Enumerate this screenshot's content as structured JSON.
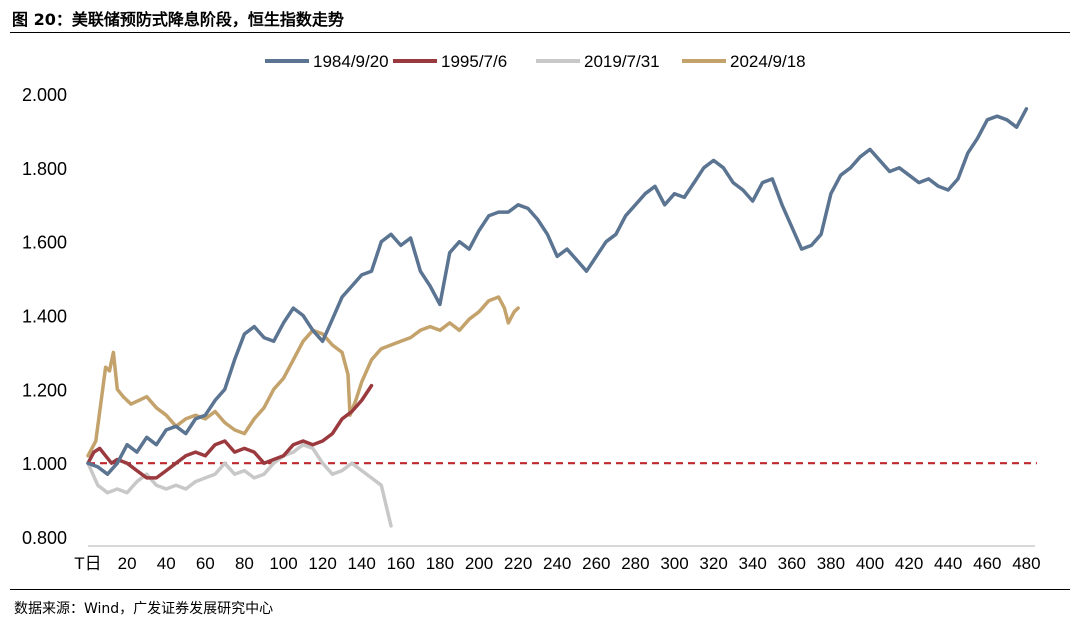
{
  "figure": {
    "title": "图 20：美联储预防式降息阶段，恒生指数走势",
    "source": "数据来源：Wind，广发证券发展研究中心"
  },
  "chart_data": {
    "type": "line",
    "title": "",
    "xlabel": "",
    "ylabel": "",
    "xlim": [
      0,
      485
    ],
    "ylim": [
      0.8,
      2.0
    ],
    "x_tick_labels": [
      "T日",
      "20",
      "40",
      "60",
      "80",
      "100",
      "120",
      "140",
      "160",
      "180",
      "200",
      "220",
      "240",
      "260",
      "280",
      "300",
      "320",
      "340",
      "360",
      "380",
      "400",
      "420",
      "440",
      "460",
      "480"
    ],
    "y_tick_labels": [
      "0.800",
      "1.000",
      "1.200",
      "1.400",
      "1.600",
      "1.800",
      "2.000"
    ],
    "y_ticks": [
      0.8,
      1.0,
      1.2,
      1.4,
      1.6,
      1.8,
      2.0
    ],
    "grid": false,
    "legend_position": "top",
    "reference_line": {
      "y": 1.0,
      "style": "dashed",
      "color": "#c0272d"
    },
    "series": [
      {
        "name": "1984/9/20",
        "color": "#5b7491",
        "points": [
          [
            0,
            1.0
          ],
          [
            5,
            0.99
          ],
          [
            10,
            0.97
          ],
          [
            15,
            1.0
          ],
          [
            20,
            1.05
          ],
          [
            25,
            1.03
          ],
          [
            30,
            1.07
          ],
          [
            35,
            1.05
          ],
          [
            40,
            1.09
          ],
          [
            45,
            1.1
          ],
          [
            50,
            1.08
          ],
          [
            55,
            1.12
          ],
          [
            60,
            1.13
          ],
          [
            65,
            1.17
          ],
          [
            70,
            1.2
          ],
          [
            75,
            1.28
          ],
          [
            80,
            1.35
          ],
          [
            85,
            1.37
          ],
          [
            90,
            1.34
          ],
          [
            95,
            1.33
          ],
          [
            100,
            1.38
          ],
          [
            105,
            1.42
          ],
          [
            110,
            1.4
          ],
          [
            115,
            1.36
          ],
          [
            120,
            1.33
          ],
          [
            125,
            1.39
          ],
          [
            130,
            1.45
          ],
          [
            135,
            1.48
          ],
          [
            140,
            1.51
          ],
          [
            145,
            1.52
          ],
          [
            150,
            1.6
          ],
          [
            155,
            1.62
          ],
          [
            160,
            1.59
          ],
          [
            165,
            1.61
          ],
          [
            170,
            1.52
          ],
          [
            175,
            1.48
          ],
          [
            180,
            1.43
          ],
          [
            185,
            1.57
          ],
          [
            190,
            1.6
          ],
          [
            195,
            1.58
          ],
          [
            200,
            1.63
          ],
          [
            205,
            1.67
          ],
          [
            210,
            1.68
          ],
          [
            215,
            1.68
          ],
          [
            220,
            1.7
          ],
          [
            225,
            1.69
          ],
          [
            230,
            1.66
          ],
          [
            235,
            1.62
          ],
          [
            240,
            1.56
          ],
          [
            245,
            1.58
          ],
          [
            250,
            1.55
          ],
          [
            255,
            1.52
          ],
          [
            260,
            1.56
          ],
          [
            265,
            1.6
          ],
          [
            270,
            1.62
          ],
          [
            275,
            1.67
          ],
          [
            280,
            1.7
          ],
          [
            285,
            1.73
          ],
          [
            290,
            1.75
          ],
          [
            295,
            1.7
          ],
          [
            300,
            1.73
          ],
          [
            305,
            1.72
          ],
          [
            310,
            1.76
          ],
          [
            315,
            1.8
          ],
          [
            320,
            1.82
          ],
          [
            325,
            1.8
          ],
          [
            330,
            1.76
          ],
          [
            335,
            1.74
          ],
          [
            340,
            1.71
          ],
          [
            345,
            1.76
          ],
          [
            350,
            1.77
          ],
          [
            355,
            1.7
          ],
          [
            360,
            1.64
          ],
          [
            365,
            1.58
          ],
          [
            370,
            1.59
          ],
          [
            375,
            1.62
          ],
          [
            380,
            1.73
          ],
          [
            385,
            1.78
          ],
          [
            390,
            1.8
          ],
          [
            395,
            1.83
          ],
          [
            400,
            1.85
          ],
          [
            405,
            1.82
          ],
          [
            410,
            1.79
          ],
          [
            415,
            1.8
          ],
          [
            420,
            1.78
          ],
          [
            425,
            1.76
          ],
          [
            430,
            1.77
          ],
          [
            435,
            1.75
          ],
          [
            440,
            1.74
          ],
          [
            445,
            1.77
          ],
          [
            450,
            1.84
          ],
          [
            455,
            1.88
          ],
          [
            460,
            1.93
          ],
          [
            465,
            1.94
          ],
          [
            470,
            1.93
          ],
          [
            475,
            1.91
          ],
          [
            480,
            1.96
          ]
        ]
      },
      {
        "name": "1995/7/6",
        "color": "#9b3a3e",
        "points": [
          [
            0,
            1.0
          ],
          [
            3,
            1.03
          ],
          [
            6,
            1.04
          ],
          [
            9,
            1.02
          ],
          [
            12,
            1.0
          ],
          [
            15,
            1.01
          ],
          [
            20,
            1.0
          ],
          [
            25,
            0.98
          ],
          [
            30,
            0.96
          ],
          [
            35,
            0.96
          ],
          [
            40,
            0.98
          ],
          [
            45,
            1.0
          ],
          [
            50,
            1.02
          ],
          [
            55,
            1.03
          ],
          [
            60,
            1.02
          ],
          [
            65,
            1.05
          ],
          [
            70,
            1.06
          ],
          [
            75,
            1.03
          ],
          [
            80,
            1.04
          ],
          [
            85,
            1.03
          ],
          [
            90,
            1.0
          ],
          [
            95,
            1.01
          ],
          [
            100,
            1.02
          ],
          [
            105,
            1.05
          ],
          [
            110,
            1.06
          ],
          [
            115,
            1.05
          ],
          [
            120,
            1.06
          ],
          [
            125,
            1.08
          ],
          [
            130,
            1.12
          ],
          [
            135,
            1.14
          ],
          [
            140,
            1.17
          ],
          [
            145,
            1.21
          ]
        ]
      },
      {
        "name": "2019/7/31",
        "color": "#c8c8c8",
        "points": [
          [
            0,
            1.0
          ],
          [
            5,
            0.94
          ],
          [
            10,
            0.92
          ],
          [
            15,
            0.93
          ],
          [
            20,
            0.92
          ],
          [
            25,
            0.95
          ],
          [
            30,
            0.97
          ],
          [
            35,
            0.94
          ],
          [
            40,
            0.93
          ],
          [
            45,
            0.94
          ],
          [
            50,
            0.93
          ],
          [
            55,
            0.95
          ],
          [
            60,
            0.96
          ],
          [
            65,
            0.97
          ],
          [
            70,
            1.0
          ],
          [
            75,
            0.97
          ],
          [
            80,
            0.98
          ],
          [
            85,
            0.96
          ],
          [
            90,
            0.97
          ],
          [
            95,
            1.0
          ],
          [
            100,
            1.02
          ],
          [
            105,
            1.03
          ],
          [
            110,
            1.05
          ],
          [
            115,
            1.04
          ],
          [
            120,
            1.0
          ],
          [
            125,
            0.97
          ],
          [
            130,
            0.98
          ],
          [
            135,
            1.0
          ],
          [
            140,
            0.98
          ],
          [
            145,
            0.96
          ],
          [
            150,
            0.94
          ],
          [
            155,
            0.83
          ]
        ]
      },
      {
        "name": "2024/9/18",
        "color": "#c4a26b",
        "points": [
          [
            0,
            1.02
          ],
          [
            4,
            1.06
          ],
          [
            7,
            1.18
          ],
          [
            9,
            1.26
          ],
          [
            11,
            1.25
          ],
          [
            13,
            1.3
          ],
          [
            15,
            1.2
          ],
          [
            18,
            1.18
          ],
          [
            22,
            1.16
          ],
          [
            26,
            1.17
          ],
          [
            30,
            1.18
          ],
          [
            35,
            1.15
          ],
          [
            40,
            1.13
          ],
          [
            45,
            1.1
          ],
          [
            50,
            1.12
          ],
          [
            55,
            1.13
          ],
          [
            60,
            1.12
          ],
          [
            65,
            1.14
          ],
          [
            70,
            1.11
          ],
          [
            75,
            1.09
          ],
          [
            80,
            1.08
          ],
          [
            85,
            1.12
          ],
          [
            90,
            1.15
          ],
          [
            95,
            1.2
          ],
          [
            100,
            1.23
          ],
          [
            105,
            1.28
          ],
          [
            110,
            1.33
          ],
          [
            115,
            1.36
          ],
          [
            120,
            1.35
          ],
          [
            125,
            1.32
          ],
          [
            130,
            1.3
          ],
          [
            133,
            1.24
          ],
          [
            134,
            1.13
          ],
          [
            137,
            1.17
          ],
          [
            140,
            1.22
          ],
          [
            145,
            1.28
          ],
          [
            150,
            1.31
          ],
          [
            155,
            1.32
          ],
          [
            160,
            1.33
          ],
          [
            165,
            1.34
          ],
          [
            170,
            1.36
          ],
          [
            175,
            1.37
          ],
          [
            180,
            1.36
          ],
          [
            185,
            1.38
          ],
          [
            190,
            1.36
          ],
          [
            195,
            1.39
          ],
          [
            200,
            1.41
          ],
          [
            205,
            1.44
          ],
          [
            210,
            1.45
          ],
          [
            213,
            1.42
          ],
          [
            215,
            1.38
          ],
          [
            218,
            1.41
          ],
          [
            220,
            1.42
          ]
        ]
      }
    ]
  }
}
